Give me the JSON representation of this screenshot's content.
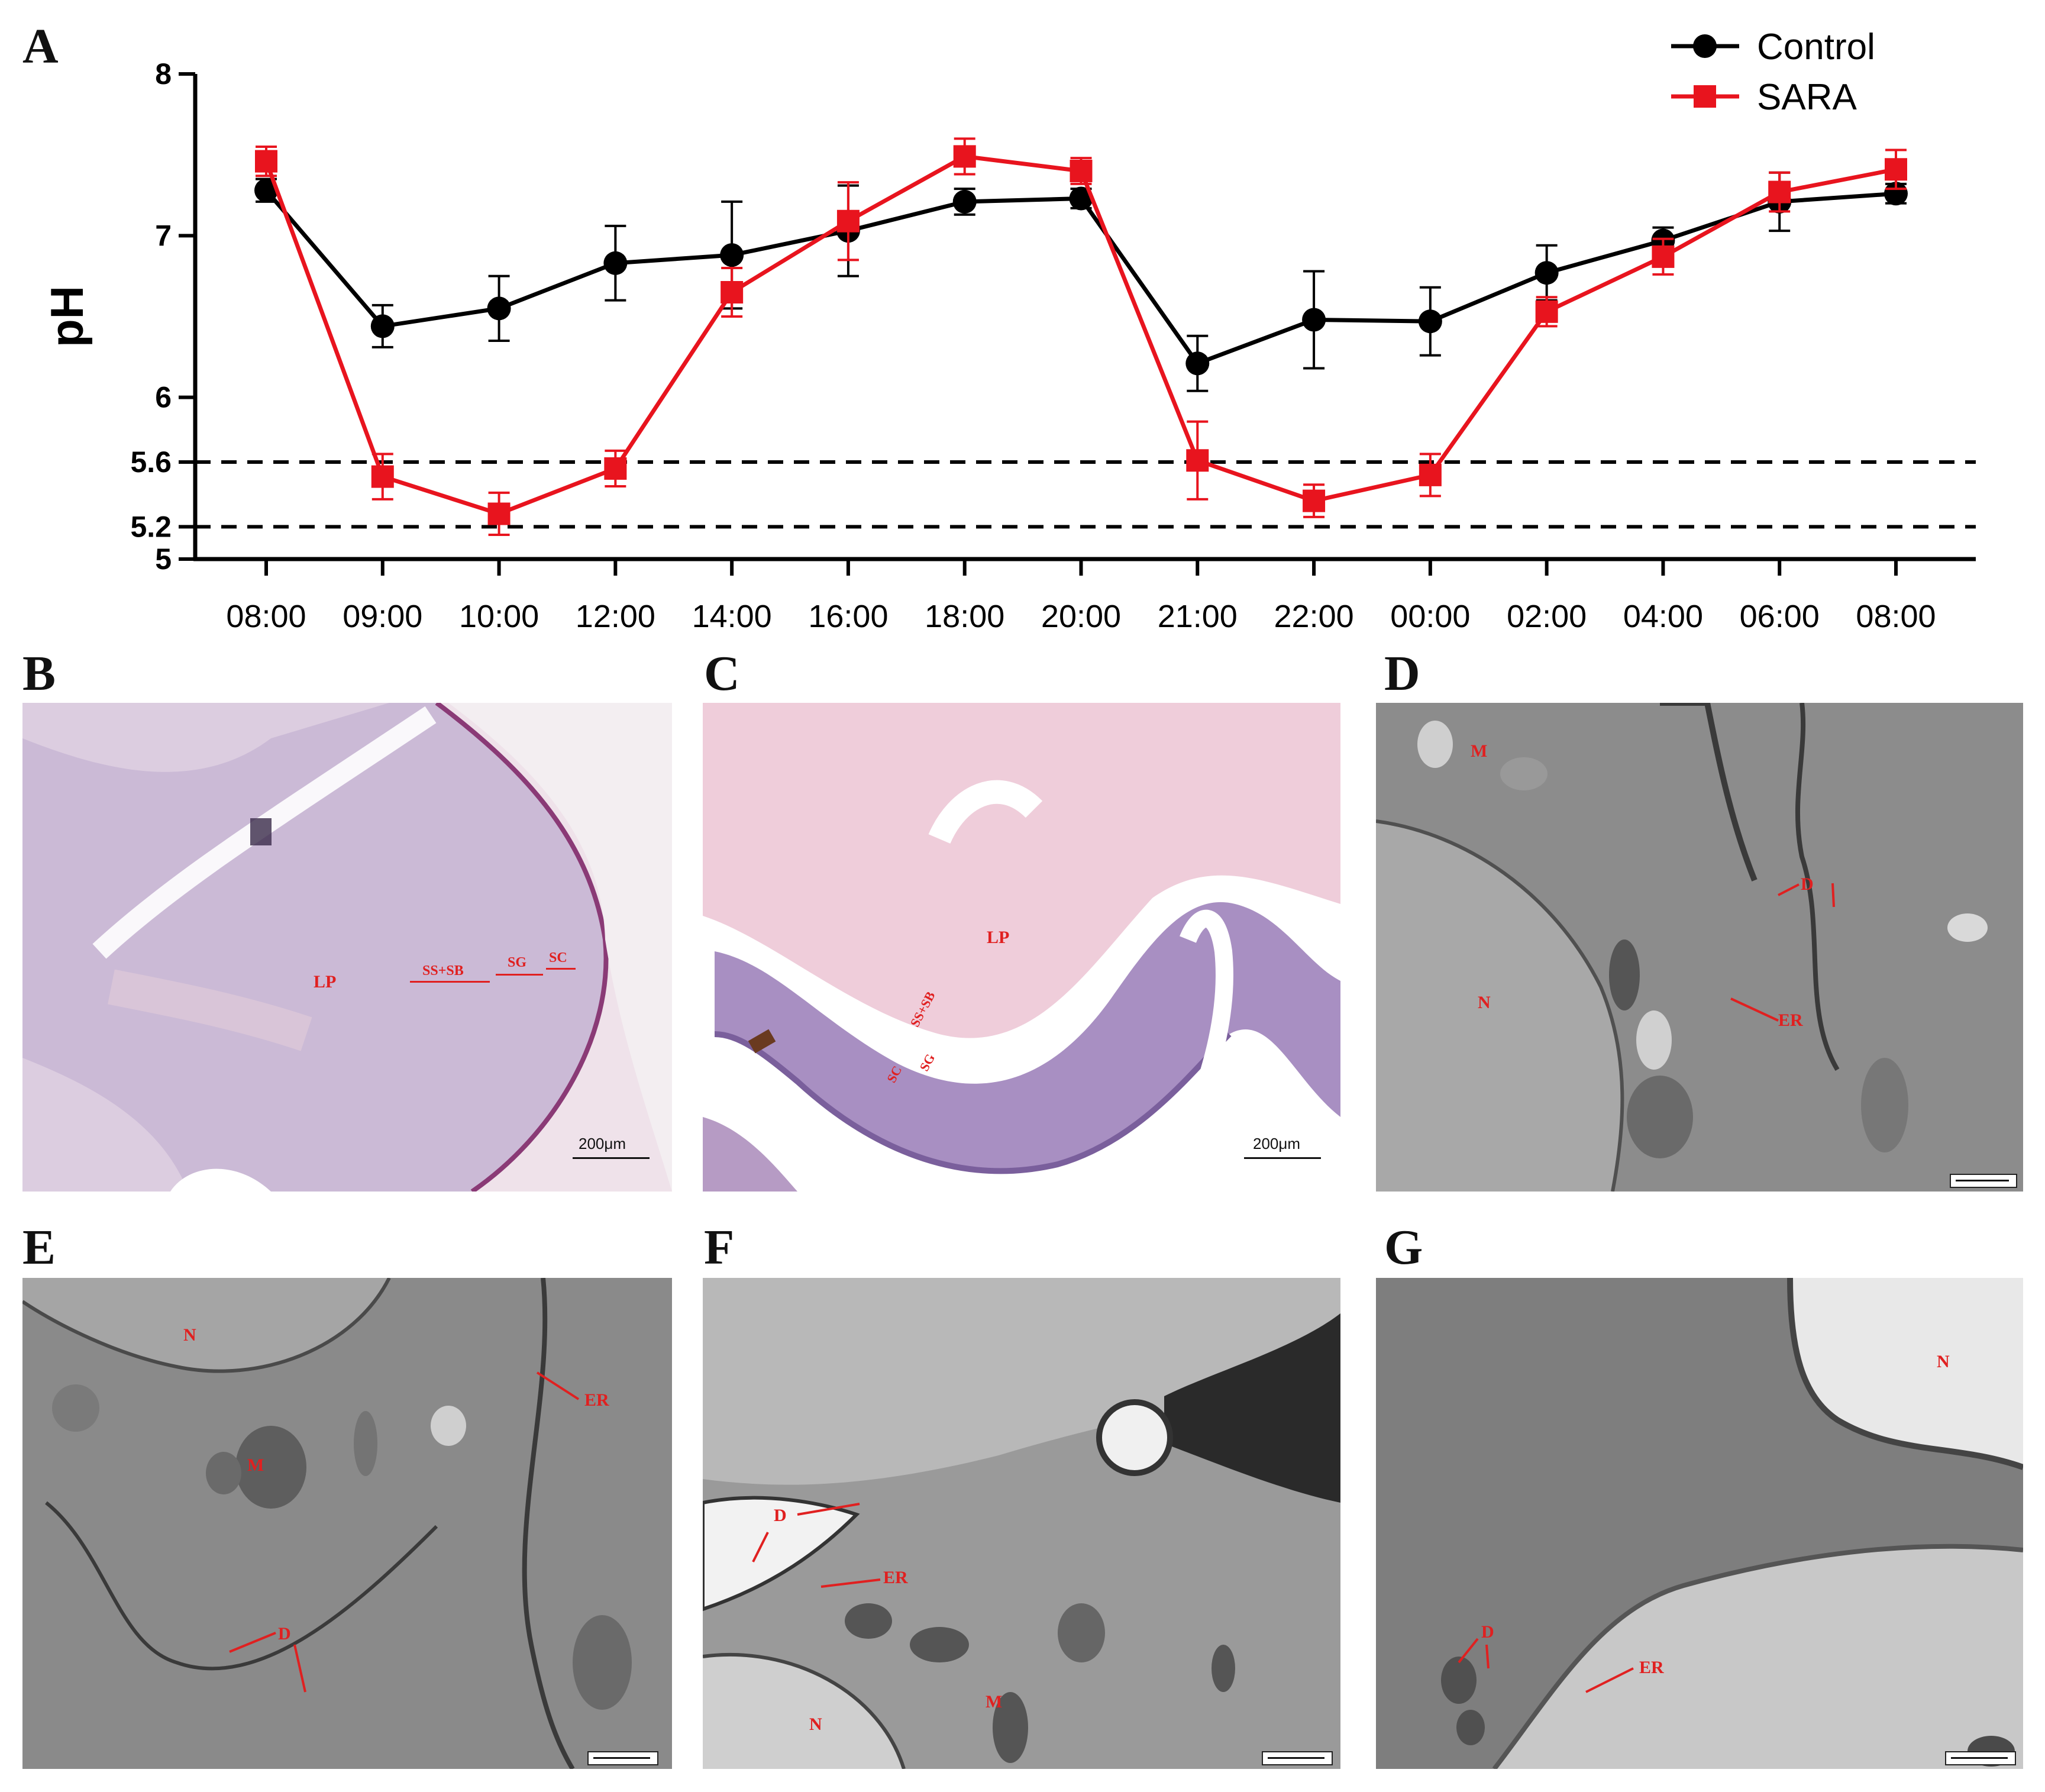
{
  "figure": {
    "panel_letters": {
      "A": "A",
      "B": "B",
      "C": "C",
      "D": "D",
      "E": "E",
      "F": "F",
      "G": "G"
    }
  },
  "chart_data": {
    "type": "line",
    "ylabel": "pH",
    "xlabel": "",
    "ylim": [
      5,
      8
    ],
    "yticks": [
      "5",
      "5.2",
      "5.6",
      "6",
      "7",
      "8"
    ],
    "ytick_values": [
      5,
      5.2,
      5.6,
      6,
      7,
      8
    ],
    "categories": [
      "08:00",
      "09:00",
      "10:00",
      "12:00",
      "14:00",
      "16:00",
      "18:00",
      "20:00",
      "21:00",
      "22:00",
      "00:00",
      "02:00",
      "04:00",
      "06:00",
      "08:00"
    ],
    "reference_lines": [
      5.6,
      5.2
    ],
    "legend_position": "top-right",
    "grid": false,
    "series": [
      {
        "name": "Control",
        "color": "#000000",
        "marker": "circle",
        "values": [
          7.28,
          6.44,
          6.55,
          6.83,
          6.88,
          7.03,
          7.21,
          7.23,
          6.21,
          6.48,
          6.47,
          6.77,
          6.97,
          7.21,
          7.26
        ],
        "errors": [
          0.07,
          0.13,
          0.2,
          0.23,
          0.33,
          0.28,
          0.08,
          0.06,
          0.17,
          0.3,
          0.21,
          0.17,
          0.08,
          0.18,
          0.06
        ]
      },
      {
        "name": "SARA",
        "color": "#e8141e",
        "marker": "square",
        "values": [
          7.46,
          5.51,
          5.28,
          5.56,
          6.65,
          7.09,
          7.49,
          7.4,
          5.61,
          5.36,
          5.52,
          6.53,
          6.87,
          7.27,
          7.41
        ],
        "errors": [
          0.09,
          0.14,
          0.13,
          0.11,
          0.15,
          0.24,
          0.11,
          0.08,
          0.24,
          0.1,
          0.13,
          0.09,
          0.11,
          0.12,
          0.12
        ]
      }
    ]
  },
  "panels": {
    "B": {
      "labels": {
        "LP": "LP",
        "SSSB": "SS+SB",
        "SG": "SG",
        "SC": "SC"
      },
      "scale": "200μm"
    },
    "C": {
      "labels": {
        "LP": "LP",
        "SSSB": "SS+SB",
        "SG": "SG",
        "SC": "SC"
      },
      "scale": "200μm"
    },
    "D": {
      "labels": {
        "M": "M",
        "N": "N",
        "D": "D",
        "ER": "ER"
      },
      "scale": "1 μm"
    },
    "E": {
      "labels": {
        "N": "N",
        "ER": "ER",
        "M": "M",
        "D": "D"
      },
      "scale": "1 μm"
    },
    "F": {
      "labels": {
        "D": "D",
        "ER": "ER",
        "M": "M",
        "N": "N"
      },
      "scale": "1 μm"
    },
    "G": {
      "labels": {
        "N": "N",
        "D": "D",
        "ER": "ER"
      },
      "scale": "1 μm"
    }
  }
}
